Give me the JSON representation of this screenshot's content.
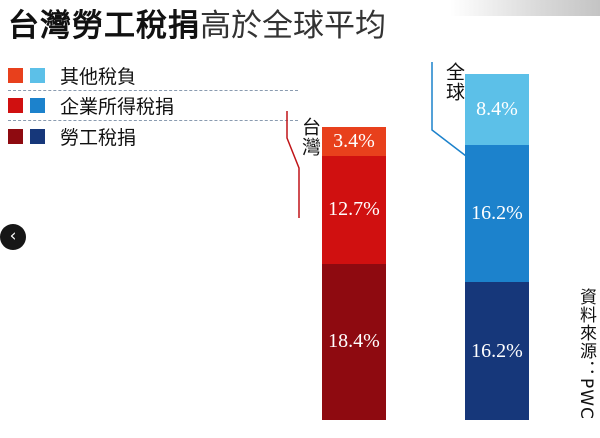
{
  "title": {
    "bold": "台灣勞工稅捐",
    "light": "高於全球平均"
  },
  "legend": [
    {
      "label": "其他稅負",
      "colors": [
        "#e8401c",
        "#5cc0e8"
      ]
    },
    {
      "label": "企業所得稅捐",
      "colors": [
        "#d01010",
        "#1c82cc"
      ]
    },
    {
      "label": "勞工稅捐",
      "colors": [
        "#8e0a10",
        "#16377a"
      ]
    }
  ],
  "source": "資料來源：PWC",
  "chart_data": {
    "type": "bar",
    "stacked": true,
    "categories": [
      "台灣",
      "全球"
    ],
    "series": [
      {
        "name": "勞工稅捐",
        "values": [
          18.4,
          16.2
        ],
        "colors": [
          "#8e0a10",
          "#16377a"
        ]
      },
      {
        "name": "企業所得稅捐",
        "values": [
          12.7,
          16.2
        ],
        "colors": [
          "#d01010",
          "#1c82cc"
        ]
      },
      {
        "name": "其他稅負",
        "values": [
          3.4,
          8.4
        ],
        "colors": [
          "#e8401c",
          "#5cc0e8"
        ]
      }
    ],
    "value_labels": [
      [
        "18.4%",
        "12.7%",
        "3.4%"
      ],
      [
        "16.2%",
        "16.2%",
        "8.4%"
      ]
    ],
    "unit": "%",
    "axes_visible": false,
    "legend_position": "top-left"
  }
}
